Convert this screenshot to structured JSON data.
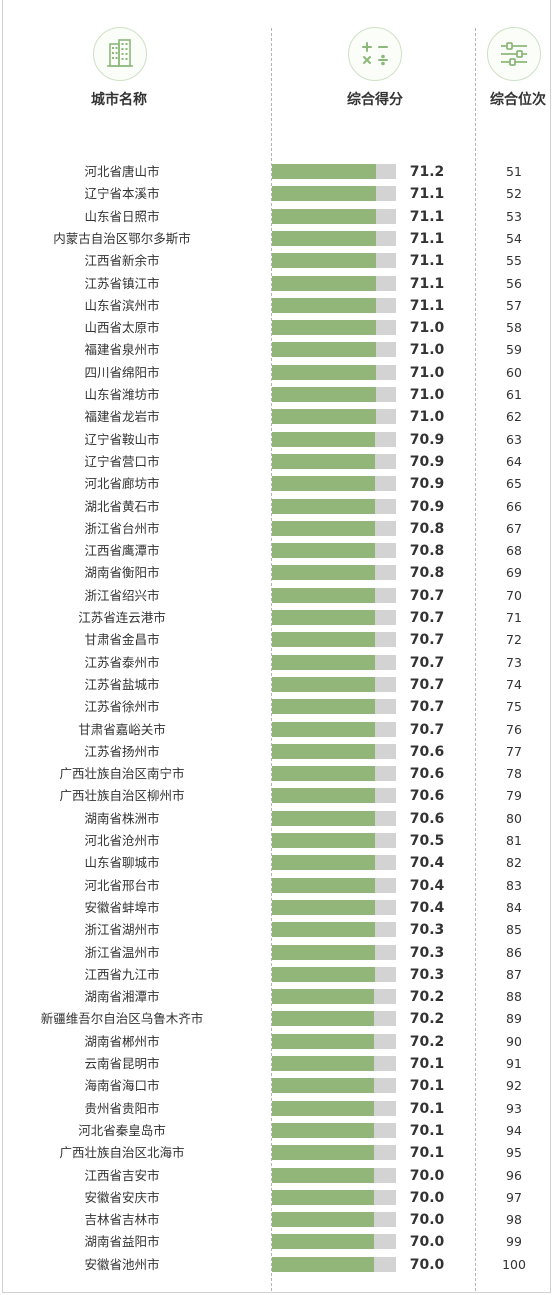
{
  "header": {
    "city_col": "城市名称",
    "score_col": "综合得分",
    "rank_col": "综合位次"
  },
  "icons": {
    "city": "building-icon",
    "score": "calculator-icon",
    "rank": "sliders-icon"
  },
  "colors": {
    "bar_fill": "#92b57a",
    "bar_track": "#d3d3d3",
    "icon_green": "#8cb87a"
  },
  "chart_data": {
    "type": "bar",
    "orientation": "horizontal",
    "categories": [
      "河北省唐山市",
      "辽宁省本溪市",
      "山东省日照市",
      "内蒙古自治区鄂尔多斯市",
      "江西省新余市",
      "江苏省镇江市",
      "山东省滨州市",
      "山西省太原市",
      "福建省泉州市",
      "四川省绵阳市",
      "山东省潍坊市",
      "福建省龙岩市",
      "辽宁省鞍山市",
      "辽宁省营口市",
      "河北省廊坊市",
      "湖北省黄石市",
      "浙江省台州市",
      "江西省鹰潭市",
      "湖南省衡阳市",
      "浙江省绍兴市",
      "江苏省连云港市",
      "甘肃省金昌市",
      "江苏省泰州市",
      "江苏省盐城市",
      "江苏省徐州市",
      "甘肃省嘉峪关市",
      "江苏省扬州市",
      "广西壮族自治区南宁市",
      "广西壮族自治区柳州市",
      "湖南省株洲市",
      "河北省沧州市",
      "山东省聊城市",
      "河北省邢台市",
      "安徽省蚌埠市",
      "浙江省湖州市",
      "浙江省温州市",
      "江西省九江市",
      "湖南省湘潭市",
      "新疆维吾尔自治区乌鲁木齐市",
      "湖南省郴州市",
      "云南省昆明市",
      "海南省海口市",
      "贵州省贵阳市",
      "河北省秦皇岛市",
      "广西壮族自治区北海市",
      "江西省吉安市",
      "安徽省安庆市",
      "吉林省吉林市",
      "湖南省益阳市",
      "安徽省池州市"
    ],
    "values": [
      71.2,
      71.1,
      71.1,
      71.1,
      71.1,
      71.1,
      71.1,
      71.0,
      71.0,
      71.0,
      71.0,
      71.0,
      70.9,
      70.9,
      70.9,
      70.9,
      70.8,
      70.8,
      70.8,
      70.7,
      70.7,
      70.7,
      70.7,
      70.7,
      70.7,
      70.7,
      70.6,
      70.6,
      70.6,
      70.6,
      70.5,
      70.4,
      70.4,
      70.4,
      70.3,
      70.3,
      70.3,
      70.2,
      70.2,
      70.2,
      70.1,
      70.1,
      70.1,
      70.1,
      70.1,
      70.0,
      70.0,
      70.0,
      70.0,
      70.0
    ],
    "value_labels": [
      "71.2",
      "71.1",
      "71.1",
      "71.1",
      "71.1",
      "71.1",
      "71.1",
      "71.0",
      "71.0",
      "71.0",
      "71.0",
      "71.0",
      "70.9",
      "70.9",
      "70.9",
      "70.9",
      "70.8",
      "70.8",
      "70.8",
      "70.7",
      "70.7",
      "70.7",
      "70.7",
      "70.7",
      "70.7",
      "70.7",
      "70.6",
      "70.6",
      "70.6",
      "70.6",
      "70.5",
      "70.4",
      "70.4",
      "70.4",
      "70.3",
      "70.3",
      "70.3",
      "70.2",
      "70.2",
      "70.2",
      "70.1",
      "70.1",
      "70.1",
      "70.1",
      "70.1",
      "70.0",
      "70.0",
      "70.0",
      "70.0",
      "70.0"
    ],
    "ranks": [
      "51",
      "52",
      "53",
      "54",
      "55",
      "56",
      "57",
      "58",
      "59",
      "60",
      "61",
      "62",
      "63",
      "64",
      "65",
      "66",
      "67",
      "68",
      "69",
      "70",
      "71",
      "72",
      "73",
      "74",
      "75",
      "76",
      "77",
      "78",
      "79",
      "80",
      "81",
      "82",
      "83",
      "84",
      "85",
      "86",
      "87",
      "88",
      "89",
      "90",
      "91",
      "92",
      "93",
      "94",
      "95",
      "96",
      "97",
      "98",
      "99",
      "100"
    ],
    "xlim": [
      0,
      85
    ],
    "grid": false
  }
}
